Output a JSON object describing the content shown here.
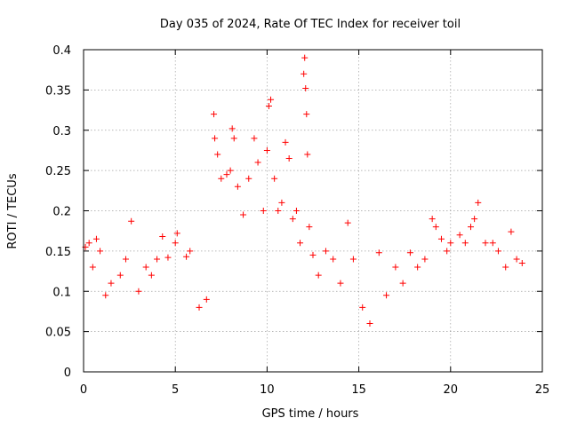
{
  "chart_data": {
    "type": "scatter",
    "title": "Day 035 of 2024, Rate Of TEC Index for receiver toil",
    "xlabel": "GPS time / hours",
    "ylabel": "ROTI / TECUs",
    "xlim": [
      0,
      25
    ],
    "ylim": [
      0,
      0.4
    ],
    "xticks": [
      "0",
      "5",
      "10",
      "15",
      "20",
      "25"
    ],
    "xtick_values": [
      0,
      5,
      10,
      15,
      20,
      25
    ],
    "yticks": [
      "0",
      "0.05",
      "0.1",
      "0.15",
      "0.2",
      "0.25",
      "0.3",
      "0.35",
      "0.4"
    ],
    "ytick_values": [
      0,
      0.05,
      0.1,
      0.15,
      0.2,
      0.25,
      0.3,
      0.35,
      0.4
    ],
    "grid": true,
    "marker": "+",
    "color": "#ff0000",
    "series": [
      {
        "points": [
          [
            0.1,
            0.155
          ],
          [
            0.3,
            0.16
          ],
          [
            0.5,
            0.13
          ],
          [
            0.7,
            0.165
          ],
          [
            0.9,
            0.15
          ],
          [
            1.2,
            0.095
          ],
          [
            1.5,
            0.11
          ],
          [
            2.0,
            0.12
          ],
          [
            2.3,
            0.14
          ],
          [
            2.6,
            0.187
          ],
          [
            3.0,
            0.1
          ],
          [
            3.4,
            0.13
          ],
          [
            3.7,
            0.12
          ],
          [
            4.0,
            0.14
          ],
          [
            4.3,
            0.168
          ],
          [
            4.6,
            0.142
          ],
          [
            5.0,
            0.16
          ],
          [
            5.1,
            0.172
          ],
          [
            5.6,
            0.143
          ],
          [
            5.8,
            0.15
          ],
          [
            6.3,
            0.08
          ],
          [
            6.7,
            0.09
          ],
          [
            7.1,
            0.32
          ],
          [
            7.15,
            0.29
          ],
          [
            7.3,
            0.27
          ],
          [
            7.5,
            0.24
          ],
          [
            7.8,
            0.245
          ],
          [
            8.0,
            0.25
          ],
          [
            8.1,
            0.302
          ],
          [
            8.2,
            0.29
          ],
          [
            8.4,
            0.23
          ],
          [
            8.7,
            0.195
          ],
          [
            9.0,
            0.24
          ],
          [
            9.3,
            0.29
          ],
          [
            9.5,
            0.26
          ],
          [
            9.8,
            0.2
          ],
          [
            10.0,
            0.275
          ],
          [
            10.1,
            0.33
          ],
          [
            10.2,
            0.338
          ],
          [
            10.4,
            0.24
          ],
          [
            10.6,
            0.2
          ],
          [
            10.8,
            0.21
          ],
          [
            11.0,
            0.285
          ],
          [
            11.2,
            0.265
          ],
          [
            11.4,
            0.19
          ],
          [
            11.6,
            0.2
          ],
          [
            11.8,
            0.16
          ],
          [
            12.0,
            0.37
          ],
          [
            12.05,
            0.39
          ],
          [
            12.1,
            0.352
          ],
          [
            12.15,
            0.32
          ],
          [
            12.2,
            0.27
          ],
          [
            12.3,
            0.18
          ],
          [
            12.5,
            0.145
          ],
          [
            12.8,
            0.12
          ],
          [
            13.2,
            0.15
          ],
          [
            13.6,
            0.14
          ],
          [
            14.0,
            0.11
          ],
          [
            14.4,
            0.185
          ],
          [
            14.7,
            0.14
          ],
          [
            15.2,
            0.08
          ],
          [
            15.6,
            0.06
          ],
          [
            16.1,
            0.148
          ],
          [
            16.5,
            0.095
          ],
          [
            17.0,
            0.13
          ],
          [
            17.4,
            0.11
          ],
          [
            17.8,
            0.148
          ],
          [
            18.2,
            0.13
          ],
          [
            18.6,
            0.14
          ],
          [
            19.0,
            0.19
          ],
          [
            19.2,
            0.18
          ],
          [
            19.5,
            0.165
          ],
          [
            19.8,
            0.15
          ],
          [
            20.0,
            0.16
          ],
          [
            20.5,
            0.17
          ],
          [
            20.8,
            0.16
          ],
          [
            21.1,
            0.18
          ],
          [
            21.3,
            0.19
          ],
          [
            21.5,
            0.21
          ],
          [
            21.9,
            0.16
          ],
          [
            22.3,
            0.16
          ],
          [
            22.6,
            0.15
          ],
          [
            23.0,
            0.13
          ],
          [
            23.3,
            0.174
          ],
          [
            23.6,
            0.14
          ],
          [
            23.9,
            0.135
          ]
        ]
      }
    ]
  }
}
